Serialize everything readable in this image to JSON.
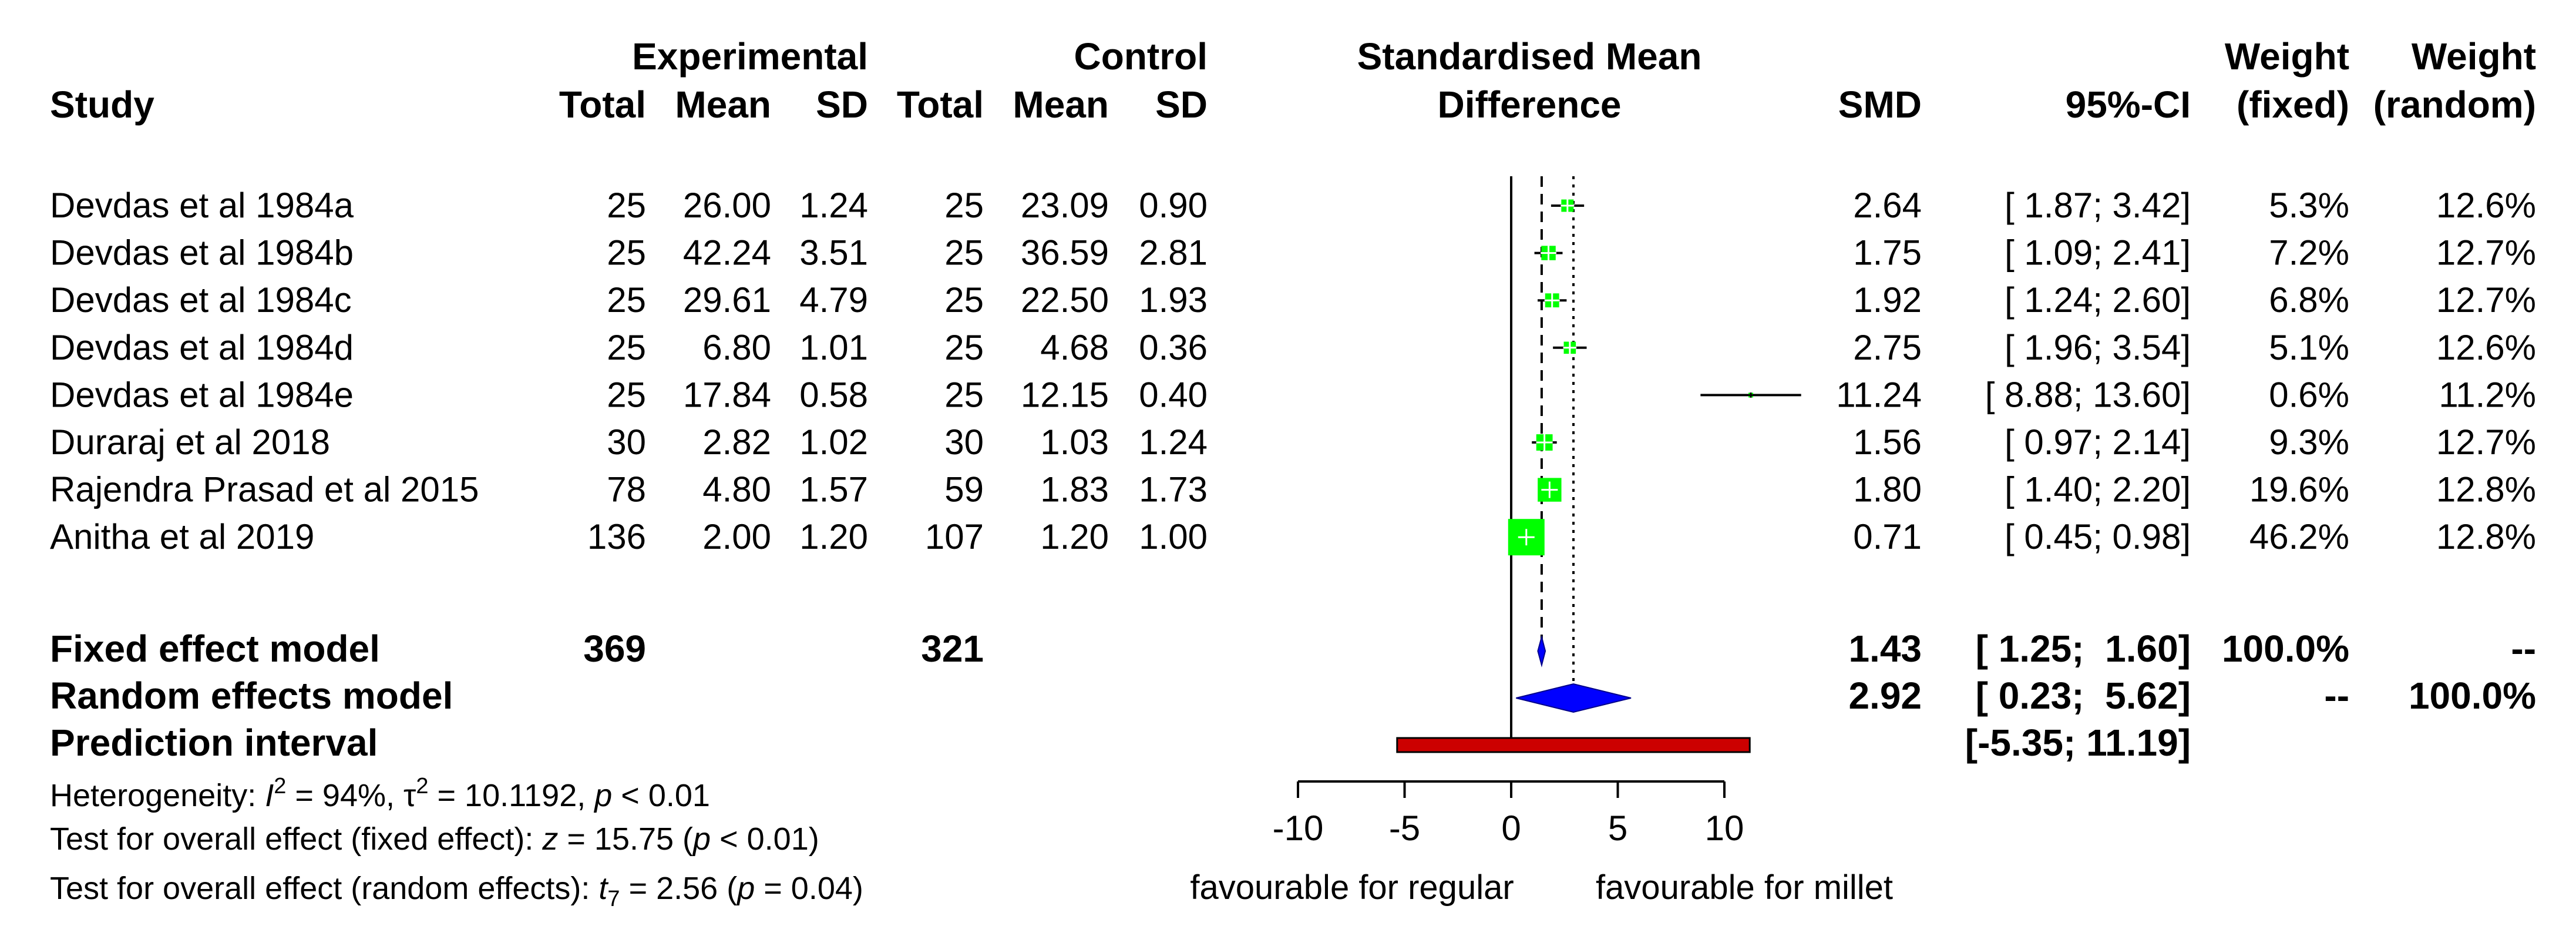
{
  "chart_data": {
    "type": "forest",
    "title": "Standardised Mean Difference",
    "headers": {
      "study": "Study",
      "experimental": "Experimental",
      "control": "Control",
      "total": "Total",
      "mean": "Mean",
      "sd": "SD",
      "smd_title_line1": "Standardised Mean",
      "smd_title_line2": "Difference",
      "smd": "SMD",
      "ci": "95%-CI",
      "weight": "Weight",
      "fixed": "(fixed)",
      "random": "(random)"
    },
    "studies": [
      {
        "name": "Devdas et al 1984a",
        "e_total": "25",
        "e_mean": "26.00",
        "e_sd": "1.24",
        "c_total": "25",
        "c_mean": "23.09",
        "c_sd": "0.90",
        "smd_text": "2.64",
        "ci_text": "[ 1.87;  3.42]",
        "w_fixed": "5.3%",
        "w_random": "12.6%",
        "smd": 2.64,
        "lower": 1.87,
        "upper": 3.42,
        "weight_fixed": 5.3
      },
      {
        "name": "Devdas et al 1984b",
        "e_total": "25",
        "e_mean": "42.24",
        "e_sd": "3.51",
        "c_total": "25",
        "c_mean": "36.59",
        "c_sd": "2.81",
        "smd_text": "1.75",
        "ci_text": "[ 1.09;  2.41]",
        "w_fixed": "7.2%",
        "w_random": "12.7%",
        "smd": 1.75,
        "lower": 1.09,
        "upper": 2.41,
        "weight_fixed": 7.2
      },
      {
        "name": "Devdas et al 1984c",
        "e_total": "25",
        "e_mean": "29.61",
        "e_sd": "4.79",
        "c_total": "25",
        "c_mean": "22.50",
        "c_sd": "1.93",
        "smd_text": "1.92",
        "ci_text": "[ 1.24;  2.60]",
        "w_fixed": "6.8%",
        "w_random": "12.7%",
        "smd": 1.92,
        "lower": 1.24,
        "upper": 2.6,
        "weight_fixed": 6.8
      },
      {
        "name": "Devdas et al 1984d",
        "e_total": "25",
        "e_mean": "6.80",
        "e_sd": "1.01",
        "c_total": "25",
        "c_mean": "4.68",
        "c_sd": "0.36",
        "smd_text": "2.75",
        "ci_text": "[ 1.96;  3.54]",
        "w_fixed": "5.1%",
        "w_random": "12.6%",
        "smd": 2.75,
        "lower": 1.96,
        "upper": 3.54,
        "weight_fixed": 5.1
      },
      {
        "name": "Devdas et al 1984e",
        "e_total": "25",
        "e_mean": "17.84",
        "e_sd": "0.58",
        "c_total": "25",
        "c_mean": "12.15",
        "c_sd": "0.40",
        "smd_text": "11.24",
        "ci_text": "[ 8.88; 13.60]",
        "w_fixed": "0.6%",
        "w_random": "11.2%",
        "smd": 11.24,
        "lower": 8.88,
        "upper": 13.6,
        "weight_fixed": 0.6
      },
      {
        "name": "Duraraj et al 2018",
        "e_total": "30",
        "e_mean": "2.82",
        "e_sd": "1.02",
        "c_total": "30",
        "c_mean": "1.03",
        "c_sd": "1.24",
        "smd_text": "1.56",
        "ci_text": "[ 0.97;  2.14]",
        "w_fixed": "9.3%",
        "w_random": "12.7%",
        "smd": 1.56,
        "lower": 0.97,
        "upper": 2.14,
        "weight_fixed": 9.3
      },
      {
        "name": "Rajendra Prasad et al 2015",
        "e_total": "78",
        "e_mean": "4.80",
        "e_sd": "1.57",
        "c_total": "59",
        "c_mean": "1.83",
        "c_sd": "1.73",
        "smd_text": "1.80",
        "ci_text": "[ 1.40;  2.20]",
        "w_fixed": "19.6%",
        "w_random": "12.8%",
        "smd": 1.8,
        "lower": 1.4,
        "upper": 2.2,
        "weight_fixed": 19.6
      },
      {
        "name": "Anitha et al 2019",
        "e_total": "136",
        "e_mean": "2.00",
        "e_sd": "1.20",
        "c_total": "107",
        "c_mean": "1.20",
        "c_sd": "1.00",
        "smd_text": "0.71",
        "ci_text": "[ 0.45;  0.98]",
        "w_fixed": "46.2%",
        "w_random": "12.8%",
        "smd": 0.71,
        "lower": 0.45,
        "upper": 0.98,
        "weight_fixed": 46.2
      }
    ],
    "fixed_model": {
      "label": "Fixed effect model",
      "e_total": "369",
      "c_total": "321",
      "smd_text": "1.43",
      "ci_text": "[ 1.25;  1.60]",
      "w_fixed": "100.0%",
      "w_random": "--",
      "smd": 1.43,
      "lower": 1.25,
      "upper": 1.6
    },
    "random_model": {
      "label": "Random effects model",
      "smd_text": "2.92",
      "ci_text": "[ 0.23;  5.62]",
      "w_fixed": "--",
      "w_random": "100.0%",
      "smd": 2.92,
      "lower": 0.23,
      "upper": 5.62
    },
    "prediction": {
      "label": "Prediction interval",
      "ci_text": "[-5.35; 11.19]",
      "lower": -5.35,
      "upper": 11.19
    },
    "heterogeneity": {
      "prefix": "Heterogeneity: ",
      "i2_symbol": "I",
      "i2_sup": "2",
      "i2_value": " = 94%, ",
      "tau_symbol": "τ",
      "tau_sup": "2",
      "tau_value": " = 10.1192, ",
      "p_symbol": "p",
      "p_value": " < 0.01"
    },
    "test_fixed": {
      "prefix": "Test for overall effect (fixed effect): ",
      "stat_symbol": "z",
      "stat_value": " = 15.75 (",
      "p_symbol": "p",
      "p_value": " < 0.01)"
    },
    "test_random": {
      "prefix": "Test for overall effect (random effects): ",
      "stat_symbol": "t",
      "stat_sub": "7",
      "stat_value": " = 2.56 (",
      "p_symbol": "p",
      "p_value": " = 0.04)"
    },
    "axis": {
      "min": -10,
      "max": 10,
      "ticks": [
        -10,
        -5,
        0,
        5,
        10
      ],
      "tick_labels": [
        "-10",
        "-5",
        "0",
        "5",
        "10"
      ],
      "null_value": 0
    },
    "favour_left": "favourable for regular",
    "favour_right": "favourable for millet",
    "colors": {
      "box": "#00ff00",
      "diamond": "#0000ff",
      "prediction": "#cc0000",
      "line": "#000000"
    }
  }
}
